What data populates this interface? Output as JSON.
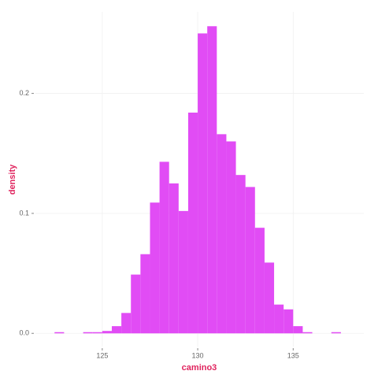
{
  "chart_data": {
    "type": "histogram",
    "xlabel": "camino3",
    "ylabel": "density",
    "bins": [
      122.5,
      123,
      123.5,
      124,
      124.5,
      125,
      125.5,
      126,
      126.5,
      127,
      127.5,
      128,
      128.5,
      129,
      129.5,
      130,
      130.5,
      131,
      131.5,
      132,
      132.5,
      133,
      133.5,
      134,
      134.5,
      135,
      135.5,
      136,
      136.5,
      137,
      137.5
    ],
    "values": [
      0.001,
      0,
      0,
      0.001,
      0.001,
      0.002,
      0.006,
      0.017,
      0.049,
      0.066,
      0.109,
      0.143,
      0.125,
      0.102,
      0.184,
      0.25,
      0.256,
      0.166,
      0.16,
      0.132,
      0.122,
      0.088,
      0.059,
      0.024,
      0.02,
      0.006,
      0.001,
      0,
      0,
      0.001
    ],
    "color": "#e14cf5",
    "xlim": [
      121.5,
      138.7
    ],
    "ylim": [
      -0.011,
      0.268
    ],
    "xticks": [
      125,
      130,
      135
    ],
    "yticks": [
      0.0,
      0.1,
      0.2
    ],
    "grid": true
  }
}
